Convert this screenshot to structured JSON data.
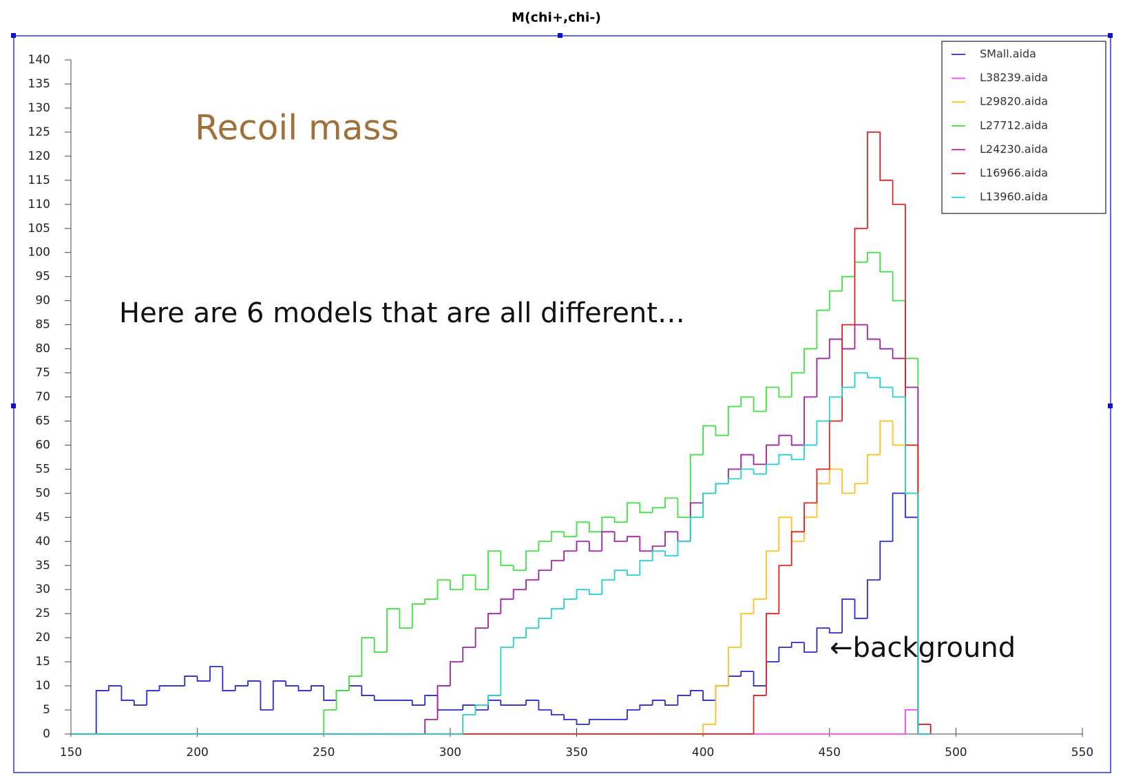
{
  "chart_data": {
    "type": "histogram",
    "title": "M(chi+,chi-)",
    "annotations": [
      "Recoil mass",
      "Here are 6 models that are all different…",
      "←background"
    ],
    "bins": [
      150,
      155,
      160,
      165,
      170,
      175,
      180,
      185,
      190,
      195,
      200,
      205,
      210,
      215,
      220,
      225,
      230,
      235,
      240,
      245,
      250,
      255,
      260,
      265,
      270,
      275,
      280,
      285,
      290,
      295,
      300,
      305,
      310,
      315,
      320,
      325,
      330,
      335,
      340,
      345,
      350,
      355,
      360,
      365,
      370,
      375,
      380,
      385,
      390,
      395,
      400,
      405,
      410,
      415,
      420,
      425,
      430,
      435,
      440,
      445,
      450,
      455,
      460,
      465,
      470,
      475,
      480,
      485,
      490
    ],
    "series": [
      {
        "name": "SMall.aida",
        "color": "#2a2ad0",
        "values": [
          0,
          0,
          9,
          10,
          7,
          6,
          9,
          10,
          10,
          12,
          11,
          14,
          9,
          10,
          11,
          5,
          11,
          10,
          9,
          10,
          7,
          9,
          10,
          8,
          7,
          7,
          7,
          6,
          8,
          5,
          5,
          6,
          5,
          7,
          6,
          6,
          7,
          5,
          4,
          3,
          2,
          3,
          3,
          3,
          5,
          6,
          7,
          6,
          8,
          9,
          7,
          10,
          12,
          13,
          10,
          15,
          18,
          19,
          17,
          22,
          21,
          28,
          24,
          32,
          40,
          50,
          45,
          0
        ]
      },
      {
        "name": "L38239.aida",
        "color": "#ff40ff",
        "values": [
          0,
          0,
          0,
          0,
          0,
          0,
          0,
          0,
          0,
          0,
          0,
          0,
          0,
          0,
          0,
          0,
          0,
          0,
          0,
          0,
          0,
          0,
          0,
          0,
          0,
          0,
          0,
          0,
          0,
          0,
          0,
          0,
          0,
          0,
          0,
          0,
          0,
          0,
          0,
          0,
          0,
          0,
          0,
          0,
          0,
          0,
          0,
          0,
          0,
          0,
          0,
          0,
          0,
          0,
          0,
          0,
          0,
          0,
          0,
          0,
          0,
          0,
          0,
          0,
          0,
          0,
          5,
          2
        ]
      },
      {
        "name": "L29820.aida",
        "color": "#ffc020",
        "values": [
          0,
          0,
          0,
          0,
          0,
          0,
          0,
          0,
          0,
          0,
          0,
          0,
          0,
          0,
          0,
          0,
          0,
          0,
          0,
          0,
          0,
          0,
          0,
          0,
          0,
          0,
          0,
          0,
          0,
          0,
          0,
          0,
          0,
          0,
          0,
          0,
          0,
          0,
          0,
          0,
          0,
          0,
          0,
          0,
          0,
          0,
          0,
          0,
          0,
          0,
          2,
          10,
          18,
          25,
          28,
          38,
          45,
          40,
          45,
          52,
          55,
          50,
          52,
          58,
          65,
          60,
          50,
          0
        ]
      },
      {
        "name": "L27712.aida",
        "color": "#40e040",
        "values": [
          0,
          0,
          0,
          0,
          0,
          0,
          0,
          0,
          0,
          0,
          0,
          0,
          0,
          0,
          0,
          0,
          0,
          0,
          0,
          0,
          5,
          9,
          12,
          20,
          17,
          26,
          22,
          27,
          28,
          32,
          30,
          33,
          30,
          38,
          35,
          34,
          38,
          40,
          42,
          41,
          44,
          42,
          45,
          44,
          48,
          46,
          47,
          49,
          45,
          58,
          64,
          62,
          68,
          70,
          67,
          72,
          70,
          75,
          80,
          88,
          92,
          95,
          98,
          100,
          96,
          90,
          78,
          0
        ]
      },
      {
        "name": "L24230.aida",
        "color": "#a020a0",
        "values": [
          0,
          0,
          0,
          0,
          0,
          0,
          0,
          0,
          0,
          0,
          0,
          0,
          0,
          0,
          0,
          0,
          0,
          0,
          0,
          0,
          0,
          0,
          0,
          0,
          0,
          0,
          0,
          0,
          3,
          10,
          15,
          18,
          22,
          25,
          28,
          30,
          32,
          34,
          36,
          38,
          40,
          38,
          42,
          40,
          41,
          38,
          39,
          42,
          40,
          48,
          50,
          52,
          55,
          58,
          56,
          60,
          62,
          60,
          70,
          78,
          82,
          80,
          85,
          82,
          80,
          78,
          72,
          0
        ]
      },
      {
        "name": "L16966.aida",
        "color": "#e02020",
        "values": [
          0,
          0,
          0,
          0,
          0,
          0,
          0,
          0,
          0,
          0,
          0,
          0,
          0,
          0,
          0,
          0,
          0,
          0,
          0,
          0,
          0,
          0,
          0,
          0,
          0,
          0,
          0,
          0,
          0,
          0,
          0,
          0,
          0,
          0,
          0,
          0,
          0,
          0,
          0,
          0,
          0,
          0,
          0,
          0,
          0,
          0,
          0,
          0,
          0,
          0,
          0,
          0,
          0,
          0,
          8,
          25,
          35,
          42,
          48,
          55,
          65,
          85,
          105,
          125,
          115,
          110,
          60,
          2
        ]
      },
      {
        "name": "L13960.aida",
        "color": "#20d0d0",
        "values": [
          0,
          0,
          0,
          0,
          0,
          0,
          0,
          0,
          0,
          0,
          0,
          0,
          0,
          0,
          0,
          0,
          0,
          0,
          0,
          0,
          0,
          0,
          0,
          0,
          0,
          0,
          0,
          0,
          0,
          0,
          0,
          4,
          6,
          8,
          18,
          20,
          22,
          24,
          26,
          28,
          30,
          29,
          32,
          34,
          33,
          36,
          38,
          37,
          40,
          45,
          50,
          52,
          53,
          55,
          54,
          56,
          58,
          57,
          60,
          65,
          70,
          72,
          75,
          74,
          72,
          70,
          50,
          0
        ]
      }
    ],
    "xlim": [
      150,
      550
    ],
    "xticks": [
      150,
      200,
      250,
      300,
      350,
      400,
      450,
      500,
      550
    ],
    "ylim": [
      0,
      140
    ],
    "yticks": [
      0,
      5,
      10,
      15,
      20,
      25,
      30,
      35,
      40,
      45,
      50,
      55,
      60,
      65,
      70,
      75,
      80,
      85,
      90,
      95,
      100,
      105,
      110,
      115,
      120,
      125,
      130,
      135,
      140
    ],
    "grid": false,
    "legend": "top-right"
  }
}
